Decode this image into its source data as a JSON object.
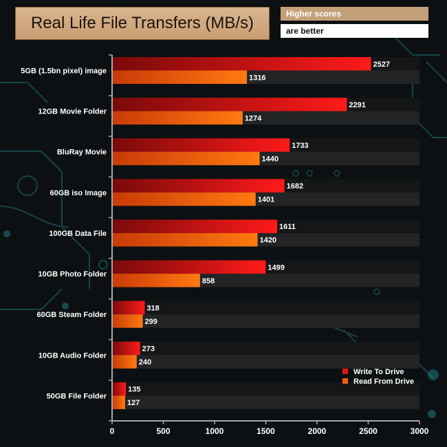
{
  "header": {
    "title": "Real Life File Transfers (MB/s)",
    "note_line1": "Higher scores",
    "note_line2": "are better"
  },
  "colors": {
    "write_start": "#7a0a0a",
    "write_end": "#ff1a1a",
    "read_start": "#c83a08",
    "read_end": "#ff7a10",
    "axis": "#b0b0b0",
    "text": "#ffffff"
  },
  "chart_data": {
    "type": "bar",
    "orientation": "horizontal",
    "title": "Real Life File Transfers (MB/s)",
    "categories": [
      "5GB (1.5bn pixel) image",
      "12GB Movie Folder",
      "BluRay Movie",
      "60GB iso Image",
      "100GB Data File",
      "10GB Photo Folder",
      "60GB Steam Folder",
      "10GB Audio Folder",
      "50GB File Folder"
    ],
    "series": [
      {
        "name": "Write To  Drive",
        "values": [
          2527,
          2291,
          1733,
          1682,
          1611,
          1499,
          318,
          273,
          135
        ]
      },
      {
        "name": "Read From  Drive",
        "values": [
          1316,
          1274,
          1440,
          1401,
          1420,
          858,
          299,
          240,
          127
        ]
      }
    ],
    "xlim": [
      0,
      3000
    ],
    "xticks": [
      0,
      500,
      1000,
      1500,
      2000,
      2500,
      3000
    ],
    "xlabel": "",
    "ylabel": "",
    "legend_position": "bottom-right",
    "grid": false
  }
}
